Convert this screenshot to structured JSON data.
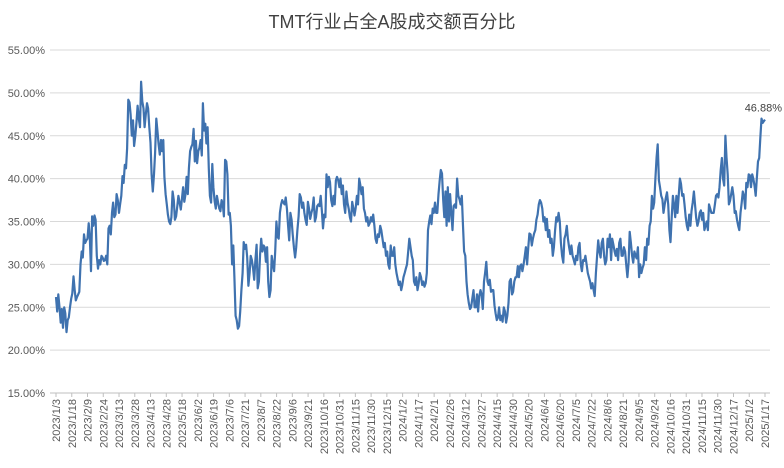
{
  "chart_data": {
    "type": "line",
    "title": "TMT行业占全A股成交额百分比",
    "xlabel": "",
    "ylabel": "",
    "ylim": [
      0.15,
      0.55
    ],
    "y_tick_labels": [
      "15.00%",
      "20.00%",
      "25.00%",
      "30.00%",
      "35.00%",
      "40.00%",
      "45.00%",
      "50.00%",
      "55.00%"
    ],
    "x_tick_labels": [
      "2023/1/3",
      "2023/1/18",
      "2023/2/9",
      "2023/2/24",
      "2023/3/13",
      "2023/3/28",
      "2023/4/13",
      "2023/4/28",
      "2023/5/18",
      "2023/6/2",
      "2023/6/19",
      "2023/7/6",
      "2023/7/21",
      "2023/8/7",
      "2023/8/22",
      "2023/9/6",
      "2023/9/21",
      "2023/10/16",
      "2023/10/31",
      "2023/11/15",
      "2023/11/30",
      "2023/12/15",
      "2024/1/2",
      "2024/1/17",
      "2024/2/1",
      "2024/2/26",
      "2024/3/12",
      "2024/3/27",
      "2024/4/15",
      "2024/4/30",
      "2024/5/20",
      "2024/6/4",
      "2024/6/20",
      "2024/7/5",
      "2024/7/22",
      "2024/8/6",
      "2024/8/21",
      "2024/9/5",
      "2024/9/24",
      "2024/10/16",
      "2024/10/31",
      "2024/11/15",
      "2024/11/30",
      "2024/12/17",
      "2025/1/2",
      "2025/1/17"
    ],
    "legend": "none",
    "grid": true,
    "series": [
      {
        "color": "#3f72af",
        "values": [
          0.262,
          0.245,
          0.265,
          0.25,
          0.232,
          0.248,
          0.226,
          0.25,
          0.243,
          0.221,
          0.235,
          0.238,
          0.25,
          0.26,
          0.266,
          0.286,
          0.27,
          0.258,
          0.262,
          0.265,
          0.268,
          0.3,
          0.315,
          0.308,
          0.335,
          0.325,
          0.328,
          0.33,
          0.348,
          0.332,
          0.292,
          0.356,
          0.345,
          0.357,
          0.352,
          0.31,
          0.295,
          0.305,
          0.3,
          0.31,
          0.308,
          0.304,
          0.305,
          0.31,
          0.3,
          0.342,
          0.345,
          0.335,
          0.36,
          0.372,
          0.355,
          0.358,
          0.382,
          0.375,
          0.36,
          0.37,
          0.38,
          0.403,
          0.395,
          0.416,
          0.412,
          0.435,
          0.492,
          0.489,
          0.475,
          0.45,
          0.468,
          0.438,
          0.45,
          0.466,
          0.485,
          0.47,
          0.46,
          0.513,
          0.49,
          0.482,
          0.46,
          0.475,
          0.488,
          0.482,
          0.46,
          0.442,
          0.405,
          0.385,
          0.405,
          0.43,
          0.47,
          0.455,
          0.44,
          0.428,
          0.445,
          0.432,
          0.445,
          0.402,
          0.382,
          0.37,
          0.358,
          0.35,
          0.347,
          0.355,
          0.385,
          0.375,
          0.352,
          0.356,
          0.368,
          0.38,
          0.372,
          0.364,
          0.376,
          0.39,
          0.373,
          0.381,
          0.402,
          0.382,
          0.412,
          0.432,
          0.437,
          0.44,
          0.458,
          0.42,
          0.444,
          0.418,
          0.432,
          0.436,
          0.445,
          0.427,
          0.488,
          0.456,
          0.464,
          0.441,
          0.46,
          0.412,
          0.38,
          0.372,
          0.417,
          0.39,
          0.374,
          0.365,
          0.38,
          0.372,
          0.365,
          0.362,
          0.375,
          0.37,
          0.356,
          0.422,
          0.42,
          0.405,
          0.358,
          0.36,
          0.345,
          0.3,
          0.322,
          0.285,
          0.24,
          0.235,
          0.225,
          0.228,
          0.245,
          0.27,
          0.29,
          0.326,
          0.318,
          0.323,
          0.308,
          0.275,
          0.29,
          0.31,
          0.305,
          0.295,
          0.282,
          0.305,
          0.323,
          0.272,
          0.28,
          0.312,
          0.33,
          0.315,
          0.322,
          0.32,
          0.303,
          0.32,
          0.28,
          0.262,
          0.27,
          0.31,
          0.3,
          0.292,
          0.315,
          0.35,
          0.332,
          0.33,
          0.36,
          0.37,
          0.375,
          0.372,
          0.37,
          0.378,
          0.365,
          0.345,
          0.328,
          0.36,
          0.352,
          0.335,
          0.32,
          0.308,
          0.32,
          0.34,
          0.356,
          0.382,
          0.378,
          0.366,
          0.372,
          0.36,
          0.352,
          0.346,
          0.373,
          0.365,
          0.353,
          0.36,
          0.365,
          0.378,
          0.35,
          0.355,
          0.368,
          0.37,
          0.368,
          0.38,
          0.362,
          0.342,
          0.358,
          0.355,
          0.405,
          0.39,
          0.402,
          0.396,
          0.375,
          0.368,
          0.38,
          0.37,
          0.398,
          0.402,
          0.398,
          0.39,
          0.4,
          0.382,
          0.392,
          0.37,
          0.36,
          0.385,
          0.372,
          0.365,
          0.355,
          0.35,
          0.373,
          0.365,
          0.357,
          0.366,
          0.38,
          0.37,
          0.4,
          0.392,
          0.382,
          0.39,
          0.365,
          0.36,
          0.35,
          0.355,
          0.345,
          0.348,
          0.355,
          0.35,
          0.358,
          0.345,
          0.33,
          0.325,
          0.335,
          0.332,
          0.345,
          0.34,
          0.33,
          0.32,
          0.325,
          0.31,
          0.315,
          0.3,
          0.295,
          0.322,
          0.31,
          0.31,
          0.32,
          0.3,
          0.29,
          0.283,
          0.276,
          0.28,
          0.27,
          0.276,
          0.285,
          0.29,
          0.295,
          0.3,
          0.315,
          0.33,
          0.32,
          0.31,
          0.305,
          0.28,
          0.276,
          0.285,
          0.27,
          0.278,
          0.29,
          0.285,
          0.276,
          0.28,
          0.274,
          0.278,
          0.29,
          0.34,
          0.35,
          0.357,
          0.347,
          0.365,
          0.36,
          0.372,
          0.36,
          0.36,
          0.382,
          0.398,
          0.41,
          0.406,
          0.375,
          0.355,
          0.385,
          0.345,
          0.39,
          0.35,
          0.382,
          0.36,
          0.34,
          0.368,
          0.37,
          0.366,
          0.4,
          0.38,
          0.376,
          0.37,
          0.38,
          0.345,
          0.315,
          0.31,
          0.28,
          0.265,
          0.255,
          0.248,
          0.25,
          0.26,
          0.27,
          0.25,
          0.25,
          0.265,
          0.245,
          0.263,
          0.27,
          0.265,
          0.248,
          0.28,
          0.29,
          0.303,
          0.28,
          0.276,
          0.282,
          0.268,
          0.27,
          0.27,
          0.252,
          0.243,
          0.235,
          0.238,
          0.25,
          0.235,
          0.24,
          0.233,
          0.25,
          0.245,
          0.232,
          0.24,
          0.255,
          0.28,
          0.283,
          0.265,
          0.268,
          0.28,
          0.285,
          0.285,
          0.298,
          0.285,
          0.298,
          0.3,
          0.292,
          0.3,
          0.31,
          0.32,
          0.3,
          0.32,
          0.336,
          0.335,
          0.322,
          0.33,
          0.336,
          0.34,
          0.352,
          0.358,
          0.37,
          0.375,
          0.372,
          0.365,
          0.35,
          0.355,
          0.34,
          0.353,
          0.332,
          0.34,
          0.325,
          0.33,
          0.31,
          0.32,
          0.34,
          0.355,
          0.35,
          0.36,
          0.35,
          0.325,
          0.31,
          0.302,
          0.33,
          0.335,
          0.345,
          0.33,
          0.32,
          0.312,
          0.322,
          0.31,
          0.305,
          0.3,
          0.31,
          0.305,
          0.32,
          0.325,
          0.3,
          0.292,
          0.305,
          0.304,
          0.31,
          0.3,
          0.29,
          0.285,
          0.28,
          0.272,
          0.278,
          0.27,
          0.263,
          0.29,
          0.31,
          0.328,
          0.315,
          0.308,
          0.325,
          0.33,
          0.31,
          0.3,
          0.305,
          0.33,
          0.32,
          0.335,
          0.305,
          0.33,
          0.323,
          0.315,
          0.31,
          0.318,
          0.305,
          0.325,
          0.33,
          0.31,
          0.31,
          0.32,
          0.315,
          0.3,
          0.285,
          0.302,
          0.338,
          0.325,
          0.31,
          0.302,
          0.315,
          0.31,
          0.307,
          0.32,
          0.285,
          0.3,
          0.29,
          0.296,
          0.3,
          0.32,
          0.305,
          0.33,
          0.323,
          0.345,
          0.35,
          0.38,
          0.365,
          0.372,
          0.4,
          0.425,
          0.44,
          0.398,
          0.39,
          0.38,
          0.376,
          0.36,
          0.37,
          0.378,
          0.384,
          0.37,
          0.34,
          0.326,
          0.355,
          0.38,
          0.37,
          0.355,
          0.38,
          0.36,
          0.38,
          0.4,
          0.394,
          0.38,
          0.382,
          0.37,
          0.355,
          0.345,
          0.34,
          0.358,
          0.345,
          0.362,
          0.372,
          0.385,
          0.37,
          0.354,
          0.345,
          0.35,
          0.36,
          0.363,
          0.352,
          0.36,
          0.34,
          0.345,
          0.35,
          0.34,
          0.37,
          0.365,
          0.36,
          0.36,
          0.36,
          0.37,
          0.38,
          0.382,
          0.378,
          0.39,
          0.41,
          0.424,
          0.4,
          0.392,
          0.45,
          0.425,
          0.405,
          0.37,
          0.374,
          0.382,
          0.39,
          0.38,
          0.36,
          0.362,
          0.352,
          0.345,
          0.34,
          0.36,
          0.372,
          0.385,
          0.38,
          0.365,
          0.395,
          0.39,
          0.405,
          0.404,
          0.39,
          0.405,
          0.4,
          0.392,
          0.38,
          0.4,
          0.42,
          0.424,
          0.447,
          0.47,
          0.465,
          0.467,
          0.4688
        ]
      }
    ],
    "annotations": [
      {
        "text": "46.88%",
        "target": "last-point"
      }
    ]
  }
}
